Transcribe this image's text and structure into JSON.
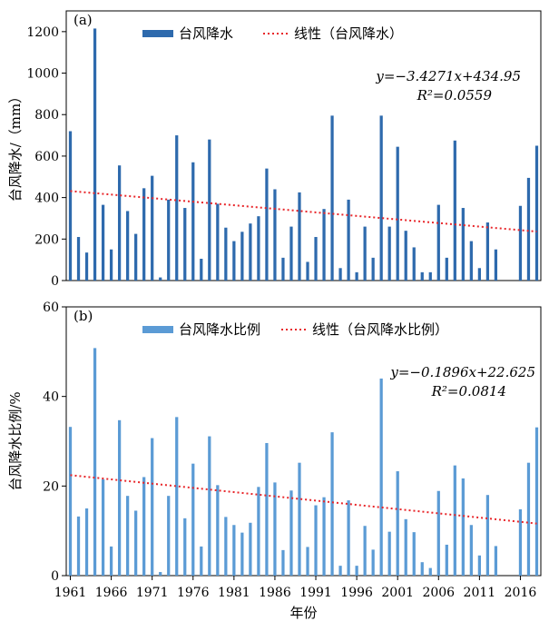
{
  "chart_data": [
    {
      "type": "bar",
      "panel_label": "(a)",
      "ylabel": "台风降水/（mm）",
      "ylim": [
        0,
        1300
      ],
      "yticks": [
        0,
        200,
        400,
        600,
        800,
        1000,
        1200
      ],
      "bar_color": "#2e6aad",
      "trend_color": "#e8262a",
      "legend": {
        "position": "top-center",
        "series_label": "台风降水",
        "trend_label": "线性（台风降水）"
      },
      "equation": "y=−3.4271x+434.95",
      "r2": "R²=0.0559",
      "trend": {
        "slope": -3.4271,
        "intercept": 434.95
      },
      "x": [
        1961,
        1962,
        1963,
        1964,
        1965,
        1966,
        1967,
        1968,
        1969,
        1970,
        1971,
        1972,
        1973,
        1974,
        1975,
        1976,
        1977,
        1978,
        1979,
        1980,
        1981,
        1982,
        1983,
        1984,
        1985,
        1986,
        1987,
        1988,
        1989,
        1990,
        1991,
        1992,
        1993,
        1994,
        1995,
        1996,
        1997,
        1998,
        1999,
        2000,
        2001,
        2002,
        2003,
        2004,
        2005,
        2006,
        2007,
        2008,
        2009,
        2010,
        2011,
        2012,
        2013,
        2014,
        2015,
        2016,
        2017,
        2018
      ],
      "values": [
        720,
        210,
        135,
        1215,
        365,
        150,
        555,
        335,
        225,
        445,
        505,
        15,
        390,
        700,
        350,
        570,
        105,
        680,
        370,
        255,
        190,
        235,
        275,
        310,
        540,
        440,
        110,
        260,
        425,
        90,
        210,
        345,
        795,
        60,
        390,
        40,
        260,
        110,
        795,
        260,
        645,
        240,
        160,
        40,
        40,
        365,
        110,
        675,
        350,
        190,
        60,
        280,
        150,
        0,
        0,
        360,
        495,
        650
      ]
    },
    {
      "type": "bar",
      "panel_label": "(b)",
      "ylabel": "台风降水比例/%",
      "xlabel": "年份",
      "ylim": [
        0,
        60
      ],
      "yticks": [
        0,
        20,
        40,
        60
      ],
      "bar_color": "#5b9bd5",
      "trend_color": "#e8262a",
      "legend": {
        "position": "top-center",
        "series_label": "台风降水比例",
        "trend_label": "线性（台风降水比例）"
      },
      "equation": "y=−0.1896x+22.625",
      "r2": "R²=0.0814",
      "trend": {
        "slope": -0.1896,
        "intercept": 22.625
      },
      "xticks": [
        "1961",
        "1966",
        "1971",
        "1976",
        "1981",
        "1986",
        "1991",
        "1996",
        "2001",
        "2006",
        "2011",
        "2016"
      ],
      "x": [
        1961,
        1962,
        1963,
        1964,
        1965,
        1966,
        1967,
        1968,
        1969,
        1970,
        1971,
        1972,
        1973,
        1974,
        1975,
        1976,
        1977,
        1978,
        1979,
        1980,
        1981,
        1982,
        1983,
        1984,
        1985,
        1986,
        1987,
        1988,
        1989,
        1990,
        1991,
        1992,
        1993,
        1994,
        1995,
        1996,
        1997,
        1998,
        1999,
        2000,
        2001,
        2002,
        2003,
        2004,
        2005,
        2006,
        2007,
        2008,
        2009,
        2010,
        2011,
        2012,
        2013,
        2014,
        2015,
        2016,
        2017,
        2018
      ],
      "values": [
        33.2,
        13.2,
        15.0,
        50.8,
        21.5,
        6.5,
        34.7,
        17.8,
        14.5,
        22.0,
        30.7,
        0.8,
        17.8,
        35.4,
        12.8,
        25.0,
        6.5,
        31.1,
        20.2,
        13.1,
        11.3,
        9.6,
        11.8,
        19.8,
        29.6,
        20.8,
        5.7,
        19.0,
        25.2,
        6.4,
        15.7,
        17.5,
        32.0,
        2.2,
        16.8,
        2.2,
        11.1,
        5.8,
        44.0,
        9.8,
        23.3,
        12.6,
        9.7,
        3.0,
        1.7,
        18.9,
        6.9,
        24.6,
        21.7,
        11.3,
        4.5,
        18.0,
        6.6,
        0,
        0,
        14.8,
        25.2,
        33.1
      ]
    }
  ]
}
